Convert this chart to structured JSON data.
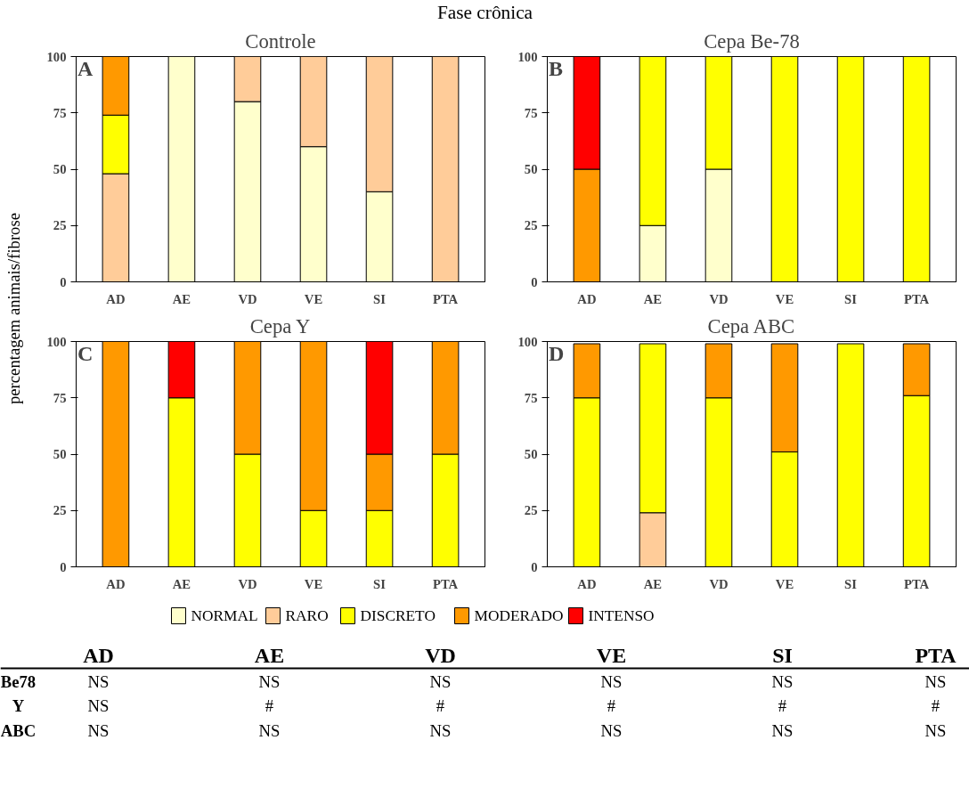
{
  "chart_data": [
    {
      "type": "other",
      "title": "Fase crônica"
    },
    {
      "type": "bar",
      "stacked": true,
      "title": "Controle",
      "annotations": [
        "A"
      ],
      "legend": "bottom",
      "ylabel": "percentagem animais/fibrose",
      "categories": [
        "AD",
        "AE",
        "VD",
        "VE",
        "SI",
        "PTA"
      ],
      "ylim": [
        0,
        100
      ],
      "yticks": [
        0,
        25,
        50,
        75,
        100
      ],
      "series": [
        {
          "name": "NORMAL",
          "color": "#ffffcc",
          "values": [
            null,
            100,
            80,
            60,
            40,
            null
          ]
        },
        {
          "name": "RARO",
          "color": "#ffcc99",
          "values": [
            48,
            null,
            20,
            40,
            60,
            100
          ]
        },
        {
          "name": "DISCRETO",
          "color": "#ffff00",
          "values": [
            26,
            null,
            null,
            null,
            null,
            null
          ]
        },
        {
          "name": "MODERADO",
          "color": "#ff9900",
          "values": [
            26,
            null,
            null,
            null,
            null,
            null
          ]
        },
        {
          "name": "INTENSO",
          "color": "#ff0000",
          "values": [
            null,
            null,
            null,
            null,
            null,
            null
          ]
        }
      ]
    },
    {
      "type": "bar",
      "stacked": true,
      "title": "Cepa Be-78",
      "annotations": [
        "B"
      ],
      "categories": [
        "AD",
        "AE",
        "VD",
        "VE",
        "SI",
        "PTA"
      ],
      "ylim": [
        0,
        100
      ],
      "yticks": [
        0,
        25,
        50,
        75,
        100
      ],
      "series": [
        {
          "color": "#ffffcc",
          "values": [
            null,
            25,
            50,
            null,
            null,
            null
          ]
        },
        {
          "color": "#ffcc99",
          "values": [
            null,
            null,
            null,
            null,
            null,
            null
          ]
        },
        {
          "color": "#ffff00",
          "values": [
            null,
            75,
            50,
            100,
            100,
            100
          ]
        },
        {
          "color": "#ff9900",
          "values": [
            50,
            null,
            null,
            null,
            null,
            null
          ]
        },
        {
          "color": "#ff0000",
          "values": [
            50,
            null,
            null,
            null,
            null,
            null
          ]
        }
      ]
    },
    {
      "type": "bar",
      "stacked": true,
      "title": "Cepa Y",
      "annotations": [
        "C"
      ],
      "categories": [
        "AD",
        "AE",
        "VD",
        "VE",
        "SI",
        "PTA"
      ],
      "ylim": [
        0,
        100
      ],
      "yticks": [
        0,
        25,
        50,
        75,
        100
      ],
      "series": [
        {
          "color": "#ffffcc",
          "values": [
            null,
            null,
            null,
            null,
            null,
            null
          ]
        },
        {
          "color": "#ffcc99",
          "values": [
            null,
            null,
            null,
            null,
            null,
            null
          ]
        },
        {
          "color": "#ffff00",
          "values": [
            null,
            75,
            50,
            25,
            25,
            50
          ]
        },
        {
          "color": "#ff9900",
          "values": [
            100,
            null,
            50,
            75,
            25,
            50
          ]
        },
        {
          "color": "#ff0000",
          "values": [
            null,
            25,
            null,
            null,
            50,
            null
          ]
        }
      ]
    },
    {
      "type": "bar",
      "stacked": true,
      "title": "Cepa ABC",
      "annotations": [
        "D"
      ],
      "categories": [
        "AD",
        "AE",
        "VD",
        "VE",
        "SI",
        "PTA"
      ],
      "ylim": [
        0,
        100
      ],
      "yticks": [
        0,
        25,
        50,
        75,
        100
      ],
      "series": [
        {
          "color": "#ffffcc",
          "values": [
            null,
            null,
            null,
            null,
            null,
            null
          ]
        },
        {
          "color": "#ffcc99",
          "values": [
            null,
            24,
            null,
            null,
            null,
            null
          ]
        },
        {
          "color": "#ffff00",
          "values": [
            75,
            75,
            75,
            51,
            99,
            76
          ]
        },
        {
          "color": "#ff9900",
          "values": [
            24,
            null,
            24,
            48,
            null,
            23
          ]
        },
        {
          "color": "#ff0000",
          "values": [
            null,
            null,
            null,
            null,
            null,
            null
          ]
        }
      ]
    },
    {
      "type": "other",
      "categories": [
        "AD",
        "AE",
        "VD",
        "VE",
        "SI",
        "PTA"
      ],
      "annotations": [
        "Be78",
        "NS",
        "NS",
        "NS",
        "NS",
        "NS",
        "NS",
        "Y",
        "NS",
        "#",
        "#",
        "#",
        "#",
        "#",
        "ABC",
        "NS",
        "NS",
        "NS",
        "NS",
        "NS",
        "NS"
      ]
    }
  ]
}
